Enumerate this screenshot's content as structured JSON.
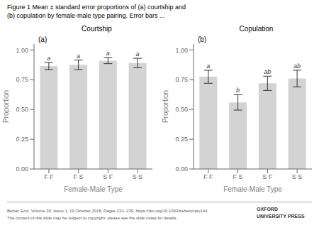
{
  "title": "Figure 1  Mean ± standard error proportions of (a) courtship and\n(b) copulation by female-male type pairing. Error bars ...",
  "annotations": [
    "Behav Ecol, Volume 30, Issue 1, 19 October 2018, Pages 231–239, https://doi.org/10.1093/beheco/ary144",
    "The content of this slide may be subject to copyright: please see the slide notes for details.",
    "OXFORD\nUNIVERSITY PRESS"
  ],
  "chart_data": [
    {
      "type": "bar",
      "title": "Courtship",
      "annotations": [
        "(a)"
      ],
      "categories": [
        "F F",
        "F S",
        "S F",
        "S S"
      ],
      "values": [
        0.865,
        0.875,
        0.91,
        0.89
      ],
      "errors": [
        0.03,
        0.04,
        0.025,
        0.04
      ],
      "letters": [
        "a",
        "a",
        "a",
        "a"
      ],
      "xlabel": "Female-Male Type",
      "ylabel": "Proportion",
      "ylim": [
        0.0,
        1.05
      ],
      "yticks": [
        {
          "value": 0.0,
          "label": "0.00"
        },
        {
          "value": 0.25,
          "label": "0.25"
        },
        {
          "value": 0.5,
          "label": "0.50"
        },
        {
          "value": 0.75,
          "label": "0.75"
        },
        {
          "value": 1.0,
          "label": "1.00"
        }
      ],
      "color": "#d3d3d3",
      "grid": false
    },
    {
      "type": "bar",
      "title": "Copulation",
      "annotations": [
        "(b)"
      ],
      "categories": [
        "F F",
        "F S",
        "S F",
        "S S"
      ],
      "values": [
        0.775,
        0.56,
        0.72,
        0.76
      ],
      "errors": [
        0.055,
        0.065,
        0.06,
        0.07
      ],
      "letters": [
        "a",
        "b",
        "ab",
        "ab"
      ],
      "xlabel": "Female-Male Type",
      "ylabel": "Proportion",
      "ylim": [
        0.0,
        1.05
      ],
      "yticks": [
        {
          "value": 0.0,
          "label": "0.00"
        },
        {
          "value": 0.25,
          "label": "0.25"
        },
        {
          "value": 0.5,
          "label": "0.50"
        },
        {
          "value": 0.75,
          "label": "0.75"
        },
        {
          "value": 1.0,
          "label": "1.00"
        }
      ],
      "color": "#d3d3d3",
      "grid": false
    }
  ]
}
